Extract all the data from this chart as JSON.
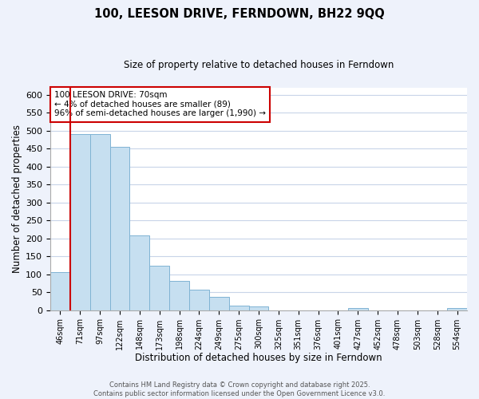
{
  "title": "100, LEESON DRIVE, FERNDOWN, BH22 9QQ",
  "subtitle": "Size of property relative to detached houses in Ferndown",
  "xlabel": "Distribution of detached houses by size in Ferndown",
  "ylabel": "Number of detached properties",
  "bar_labels": [
    "46sqm",
    "71sqm",
    "97sqm",
    "122sqm",
    "148sqm",
    "173sqm",
    "198sqm",
    "224sqm",
    "249sqm",
    "275sqm",
    "300sqm",
    "325sqm",
    "351sqm",
    "376sqm",
    "401sqm",
    "427sqm",
    "452sqm",
    "478sqm",
    "503sqm",
    "528sqm",
    "554sqm"
  ],
  "bar_values": [
    105,
    490,
    490,
    455,
    208,
    123,
    82,
    58,
    37,
    13,
    10,
    0,
    0,
    0,
    0,
    5,
    0,
    0,
    0,
    0,
    5
  ],
  "bar_color": "#c6dff0",
  "bar_edgecolor": "#7fb3d3",
  "vline_color": "#cc0000",
  "annotation_line1": "100 LEESON DRIVE: 70sqm",
  "annotation_line2": "← 4% of detached houses are smaller (89)",
  "annotation_line3": "96% of semi-detached houses are larger (1,990) →",
  "annotation_box_color": "#cc0000",
  "ylim": [
    0,
    620
  ],
  "yticks": [
    0,
    50,
    100,
    150,
    200,
    250,
    300,
    350,
    400,
    450,
    500,
    550,
    600
  ],
  "footer1": "Contains HM Land Registry data © Crown copyright and database right 2025.",
  "footer2": "Contains public sector information licensed under the Open Government Licence v3.0.",
  "bg_color": "#eef2fb",
  "plot_bg_color": "#ffffff",
  "grid_color": "#c8d4e8"
}
